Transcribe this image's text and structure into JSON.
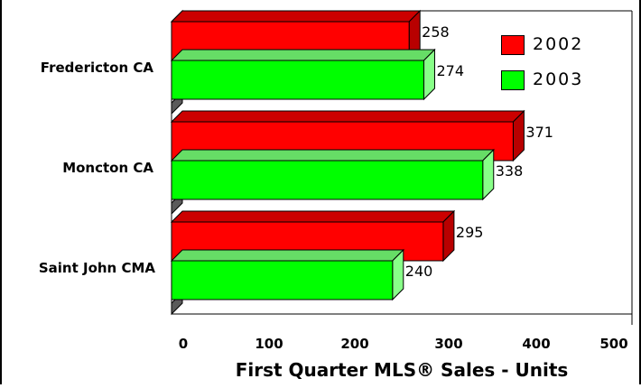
{
  "chart_data": {
    "type": "bar",
    "orientation": "horizontal",
    "categories": [
      "Fredericton CA",
      "Moncton CA",
      "Saint John CMA"
    ],
    "series": [
      {
        "name": "2002",
        "values": [
          258,
          371,
          295
        ]
      },
      {
        "name": "2003",
        "values": [
          274,
          338,
          240
        ]
      }
    ],
    "xlabel": "First Quarter MLS® Sales - Units",
    "xlim": [
      0,
      500
    ],
    "x_ticks": [
      "0",
      "100",
      "200",
      "300",
      "400",
      "500"
    ],
    "legend_position": "top-right",
    "grid": false,
    "colors": {
      "2002": "#ff0000",
      "2003": "#00ff00"
    }
  }
}
